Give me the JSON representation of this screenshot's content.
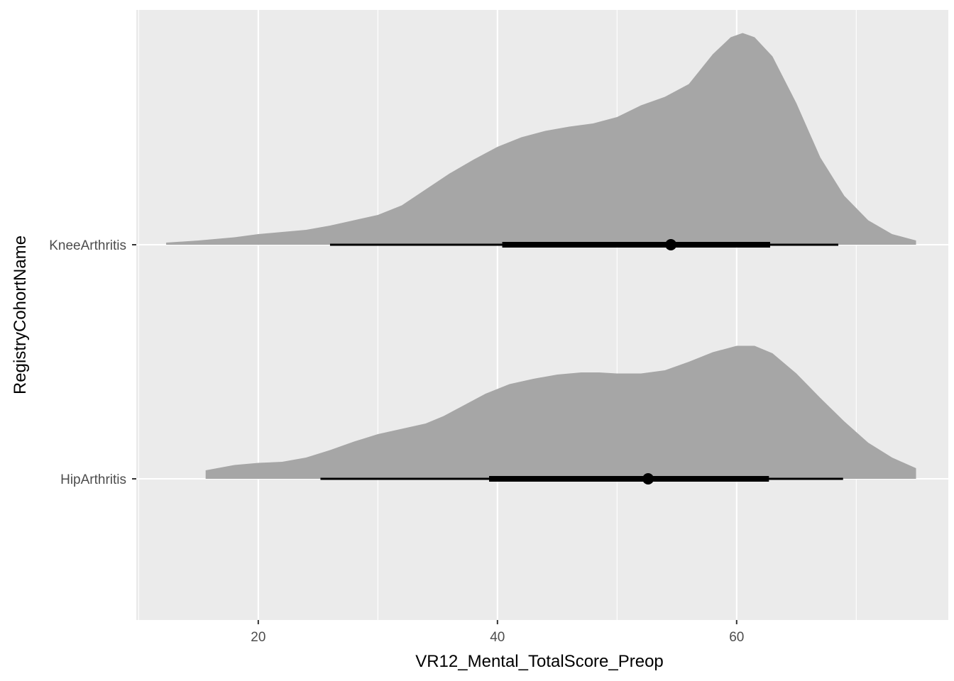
{
  "chart_data": {
    "type": "halfeye",
    "title": "",
    "xlabel": "VR12_Mental_TotalScore_Preop",
    "ylabel": "RegistryCohortName",
    "xlim": [
      9.8,
      77.7
    ],
    "x_ticks": [
      20,
      40,
      60
    ],
    "x_minor_ticks": [
      10,
      30,
      50,
      70
    ],
    "grid": true,
    "categories": [
      "HipArthritis",
      "KneeArthritis"
    ],
    "colors": {
      "panel": "#EBEBEB",
      "grid": "#FFFFFF",
      "density_fill": "#A6A6A6",
      "interval": "#000000",
      "tick_label": "#4D4D4D",
      "axis_title": "#000000"
    },
    "series": [
      {
        "name": "HipArthritis",
        "point": 52.6,
        "interval_66": [
          39.3,
          62.7
        ],
        "interval_95": [
          25.2,
          68.9
        ],
        "density": {
          "x": [
            15.6,
            18,
            20,
            22,
            24,
            26,
            28,
            30,
            32,
            34,
            35.5,
            37,
            39,
            41,
            43,
            45,
            47,
            48.5,
            50,
            52,
            54,
            56,
            58,
            60,
            61.5,
            63,
            65,
            67,
            69,
            71,
            73,
            75
          ],
          "y": [
            0.08,
            0.13,
            0.15,
            0.16,
            0.2,
            0.27,
            0.35,
            0.42,
            0.47,
            0.52,
            0.59,
            0.68,
            0.8,
            0.89,
            0.94,
            0.98,
            1.0,
            1.0,
            0.99,
            0.99,
            1.02,
            1.1,
            1.19,
            1.25,
            1.25,
            1.18,
            0.99,
            0.76,
            0.54,
            0.34,
            0.2,
            0.1
          ]
        }
      },
      {
        "name": "KneeArthritis",
        "point": 54.5,
        "interval_66": [
          40.4,
          62.8
        ],
        "interval_95": [
          26.0,
          68.5
        ],
        "density": {
          "x": [
            12.3,
            15,
            18,
            20,
            22,
            24,
            26,
            28,
            30,
            32,
            34,
            36,
            38,
            40,
            42,
            44,
            46,
            48,
            50,
            52,
            54,
            56,
            58,
            59.5,
            60.5,
            61.5,
            63,
            65,
            67,
            69,
            71,
            73,
            75
          ],
          "y": [
            0.02,
            0.04,
            0.07,
            0.1,
            0.12,
            0.14,
            0.18,
            0.23,
            0.28,
            0.37,
            0.52,
            0.67,
            0.8,
            0.92,
            1.01,
            1.07,
            1.11,
            1.14,
            1.2,
            1.31,
            1.39,
            1.51,
            1.79,
            1.95,
            1.99,
            1.95,
            1.77,
            1.33,
            0.82,
            0.46,
            0.23,
            0.1,
            0.04
          ]
        }
      }
    ]
  }
}
